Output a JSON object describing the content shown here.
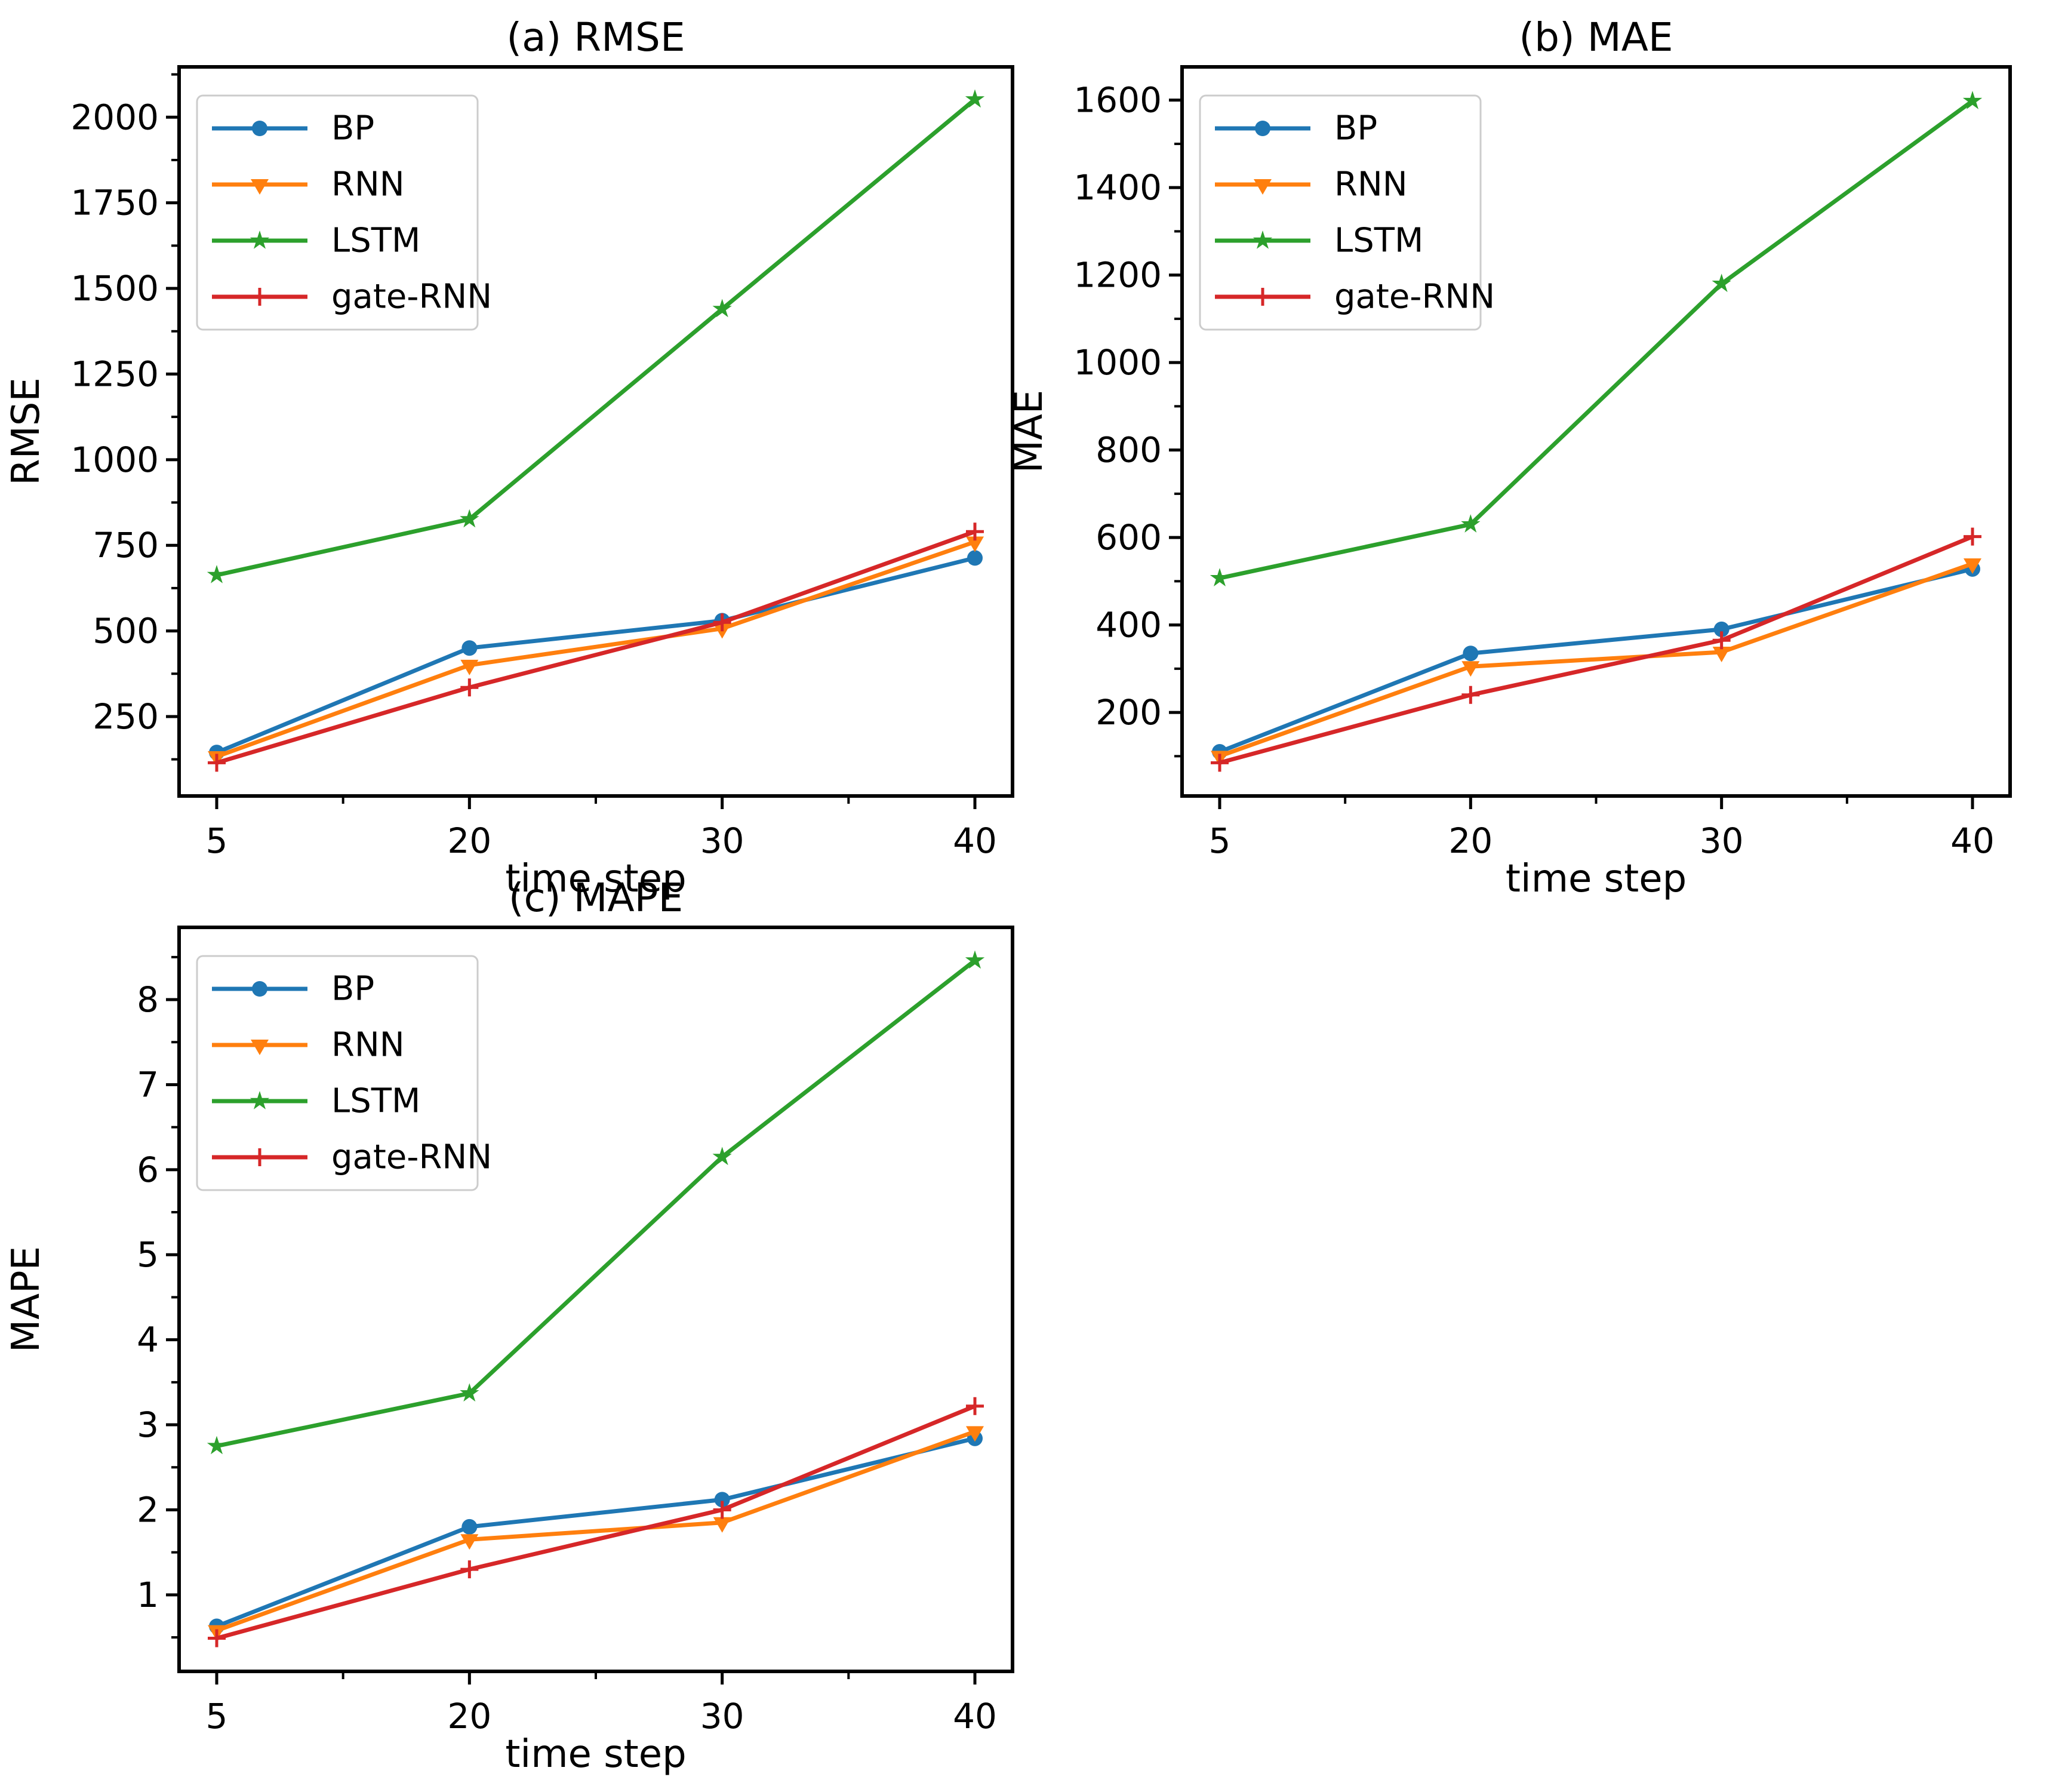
{
  "figure": {
    "background": "#ffffff"
  },
  "chart_data": [
    {
      "id": "rmse",
      "type": "line",
      "title": "(a) RMSE",
      "xlabel": "time step",
      "ylabel": "RMSE",
      "x_tick_labels": [
        "5",
        "20",
        "30",
        "40"
      ],
      "yticks": [
        250,
        500,
        750,
        1000,
        1250,
        1500,
        1750,
        2000
      ],
      "ylim": [
        18,
        2147
      ],
      "grid": false,
      "legend_position": "upper-left",
      "series": [
        {
          "name": "BP",
          "color": "#1f77b4",
          "marker": "circle",
          "values": [
            145,
            450,
            530,
            713
          ]
        },
        {
          "name": "RNN",
          "color": "#ff7f0e",
          "marker": "triangle-down",
          "values": [
            133,
            400,
            507,
            760
          ]
        },
        {
          "name": "LSTM",
          "color": "#2ca02c",
          "marker": "star",
          "values": [
            663,
            826,
            1440,
            2052
          ]
        },
        {
          "name": "gate-RNN",
          "color": "#d62728",
          "marker": "plus",
          "values": [
            115,
            335,
            525,
            790
          ]
        }
      ]
    },
    {
      "id": "mae",
      "type": "line",
      "title": "(b) MAE",
      "xlabel": "time step",
      "ylabel": "MAE",
      "x_tick_labels": [
        "5",
        "20",
        "30",
        "40"
      ],
      "yticks": [
        200,
        400,
        600,
        800,
        1000,
        1200,
        1400,
        1600
      ],
      "ylim": [
        9,
        1676
      ],
      "grid": false,
      "legend_position": "upper-left",
      "series": [
        {
          "name": "BP",
          "color": "#1f77b4",
          "marker": "circle",
          "values": [
            110,
            335,
            390,
            528
          ]
        },
        {
          "name": "RNN",
          "color": "#ff7f0e",
          "marker": "triangle-down",
          "values": [
            100,
            305,
            338,
            540
          ]
        },
        {
          "name": "LSTM",
          "color": "#2ca02c",
          "marker": "star",
          "values": [
            507,
            630,
            1180,
            1598
          ]
        },
        {
          "name": "gate-RNN",
          "color": "#d62728",
          "marker": "plus",
          "values": [
            85,
            240,
            365,
            602
          ]
        }
      ]
    },
    {
      "id": "mape",
      "type": "line",
      "title": "(c) MAPE",
      "xlabel": "time step",
      "ylabel": "MAPE",
      "x_tick_labels": [
        "5",
        "20",
        "30",
        "40"
      ],
      "yticks": [
        1,
        2,
        3,
        4,
        5,
        6,
        7,
        8
      ],
      "ylim": [
        0.1,
        8.85
      ],
      "grid": false,
      "legend_position": "upper-left",
      "series": [
        {
          "name": "BP",
          "color": "#1f77b4",
          "marker": "circle",
          "values": [
            0.63,
            1.8,
            2.12,
            2.84
          ]
        },
        {
          "name": "RNN",
          "color": "#ff7f0e",
          "marker": "triangle-down",
          "values": [
            0.58,
            1.65,
            1.85,
            2.92
          ]
        },
        {
          "name": "LSTM",
          "color": "#2ca02c",
          "marker": "star",
          "values": [
            2.75,
            3.37,
            6.15,
            8.46
          ]
        },
        {
          "name": "gate-RNN",
          "color": "#d62728",
          "marker": "plus",
          "values": [
            0.49,
            1.3,
            2.0,
            3.22
          ]
        }
      ]
    }
  ]
}
